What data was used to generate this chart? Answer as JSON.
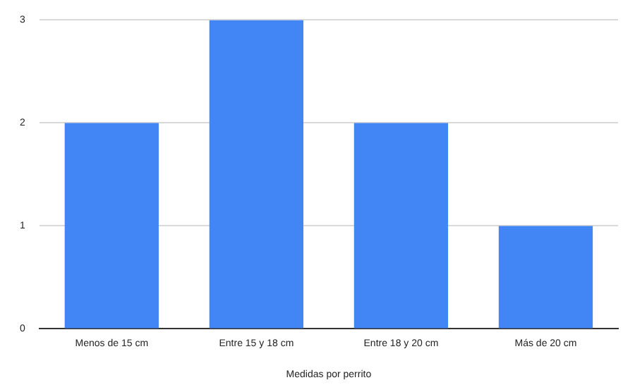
{
  "chart_data": {
    "type": "bar",
    "xlabel": "Medidas por perrito",
    "categories": [
      "Menos de 15 cm",
      "Entre 15 y 18 cm",
      "Entre 18 y 20 cm",
      "Más de 20 cm"
    ],
    "values": [
      2,
      3,
      2,
      1
    ],
    "color": "#4285f4",
    "ylim": [
      0,
      3
    ],
    "yticks": [
      0,
      1,
      2,
      3
    ],
    "grid": "y",
    "legend": false
  }
}
